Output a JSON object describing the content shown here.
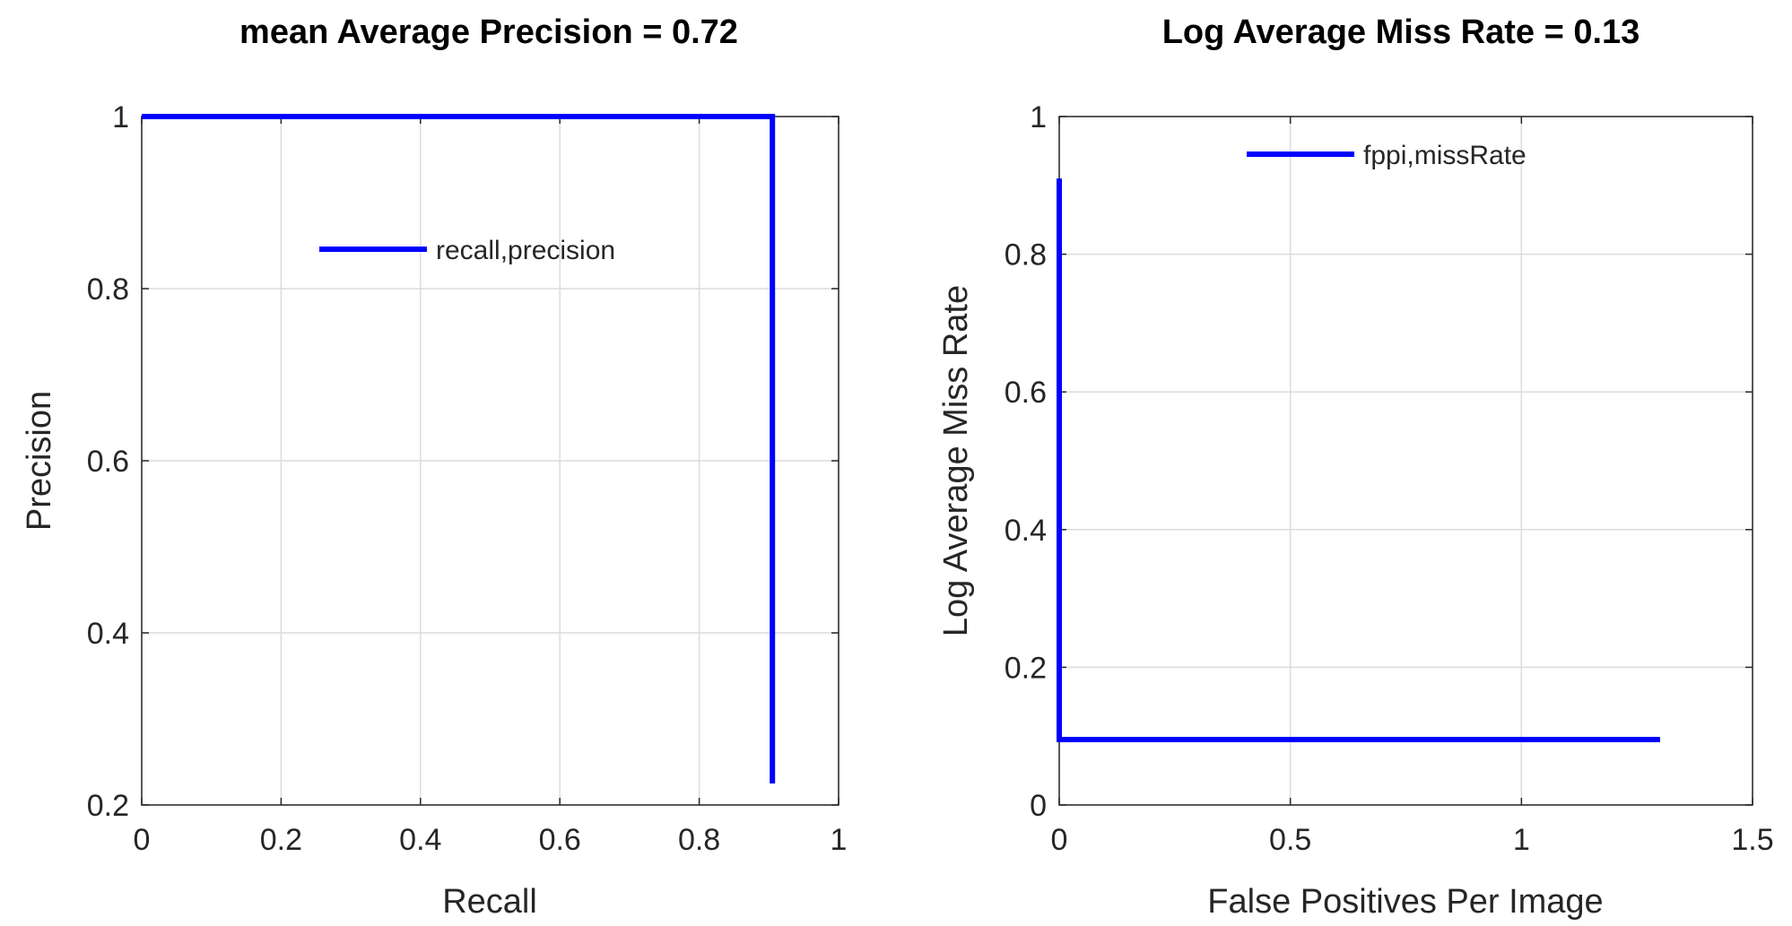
{
  "chart_data": [
    {
      "type": "line",
      "title": "mean Average Precision = 0.72",
      "xlabel": "Recall",
      "ylabel": "Precision",
      "xlim": [
        0,
        1
      ],
      "ylim": [
        0.2,
        1
      ],
      "xticks": [
        "0",
        "0.2",
        "0.4",
        "0.6",
        "0.8",
        "1"
      ],
      "yticks": [
        "0.2",
        "0.4",
        "0.6",
        "0.8",
        "1"
      ],
      "grid": true,
      "legend_position": "upper-middle",
      "series": [
        {
          "name": "recall,precision",
          "color": "#0000ff",
          "x": [
            0,
            0.905,
            0.905
          ],
          "y": [
            1.0,
            1.0,
            0.225
          ]
        }
      ]
    },
    {
      "type": "line",
      "title": "Log Average Miss Rate = 0.13",
      "xlabel": "False Positives Per Image",
      "ylabel": "Log Average Miss Rate",
      "xlim": [
        0,
        1.5
      ],
      "ylim": [
        0,
        1
      ],
      "xticks": [
        "0",
        "0.5",
        "1",
        "1.5"
      ],
      "yticks": [
        "0",
        "0.2",
        "0.4",
        "0.6",
        "0.8",
        "1"
      ],
      "grid": true,
      "legend_position": "top-center",
      "series": [
        {
          "name": "fppi,missRate",
          "color": "#0000ff",
          "x": [
            0,
            0,
            1.3
          ],
          "y": [
            0.91,
            0.095,
            0.095
          ]
        }
      ]
    }
  ]
}
